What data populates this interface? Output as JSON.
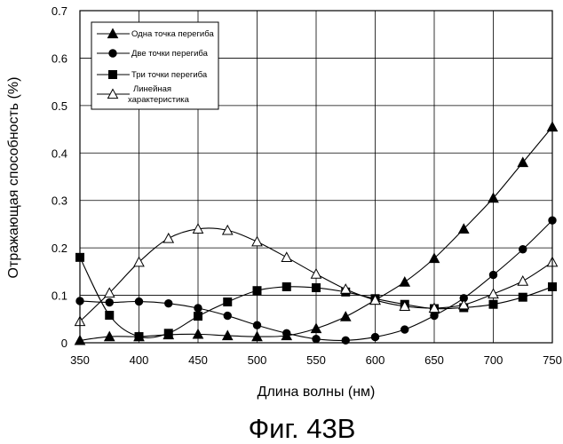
{
  "chart_data": {
    "type": "line",
    "title": "",
    "xlabel": "Длина волны (нм)",
    "ylabel": "Отражающая способность (%)",
    "caption": "Фиг. 43B",
    "xlim": [
      350,
      750
    ],
    "ylim": [
      0,
      0.7
    ],
    "grid": true,
    "legend_position": "top-left",
    "x_ticks": [
      "350",
      "400",
      "450",
      "500",
      "550",
      "600",
      "650",
      "700",
      "750"
    ],
    "y_ticks": [
      "0",
      "0.1",
      "0.2",
      "0.3",
      "0.4",
      "0.5",
      "0.6",
      "0.7"
    ],
    "x": [
      350,
      375,
      400,
      425,
      450,
      475,
      500,
      525,
      550,
      575,
      600,
      625,
      650,
      675,
      700,
      725,
      750
    ],
    "series": [
      {
        "name": "Одна точка перегиба",
        "marker": "triangle-filled",
        "values": [
          0.005,
          0.013,
          0.013,
          0.017,
          0.018,
          0.015,
          0.013,
          0.015,
          0.03,
          0.055,
          0.09,
          0.128,
          0.178,
          0.24,
          0.305,
          0.38,
          0.455
        ]
      },
      {
        "name": "Две точки перегиба",
        "marker": "circle-filled",
        "values": [
          0.088,
          0.085,
          0.087,
          0.083,
          0.073,
          0.057,
          0.037,
          0.02,
          0.008,
          0.005,
          0.012,
          0.028,
          0.057,
          0.094,
          0.143,
          0.197,
          0.258
        ]
      },
      {
        "name": "Три точки перегиба",
        "marker": "square-filled",
        "values": [
          0.18,
          0.058,
          0.013,
          0.02,
          0.056,
          0.086,
          0.11,
          0.118,
          0.116,
          0.107,
          0.093,
          0.081,
          0.072,
          0.074,
          0.081,
          0.096,
          0.118
        ]
      },
      {
        "name": "Линейная характеристика",
        "marker": "triangle-open",
        "values": [
          0.045,
          0.105,
          0.17,
          0.22,
          0.24,
          0.237,
          0.213,
          0.18,
          0.145,
          0.113,
          0.09,
          0.077,
          0.073,
          0.08,
          0.103,
          0.13,
          0.17
        ]
      }
    ]
  }
}
